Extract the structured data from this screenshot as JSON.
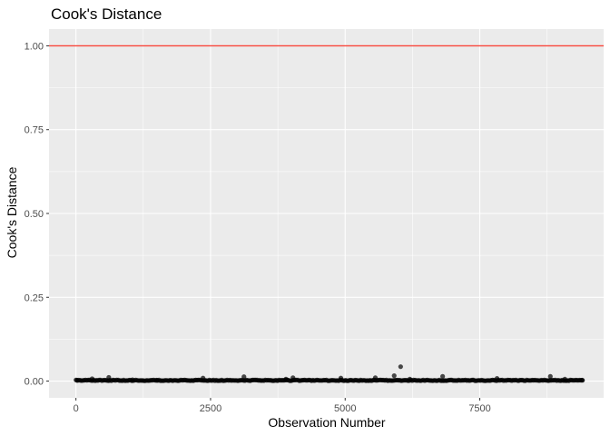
{
  "chart_data": {
    "type": "scatter",
    "title": "Cook's Distance",
    "xlabel": "Observation Number",
    "ylabel": "Cook's Distance",
    "xlim": [
      -500,
      9800
    ],
    "ylim": [
      -0.05,
      1.05
    ],
    "x_ticks": [
      0,
      2500,
      5000,
      7500
    ],
    "x_tick_labels": [
      "0",
      "2500",
      "5000",
      "7500"
    ],
    "y_ticks": [
      0,
      0.25,
      0.5,
      0.75,
      1.0
    ],
    "y_tick_labels": [
      "0.00",
      "0.25",
      "0.50",
      "0.75",
      "1.00"
    ],
    "grid": true,
    "threshold_line": {
      "y": 1.0,
      "color": "#f8453a"
    },
    "observation_range": [
      1,
      9430
    ],
    "baseline_value": 0.001,
    "notable_points": [
      {
        "x": 20,
        "y": 0.003
      },
      {
        "x": 300,
        "y": 0.007
      },
      {
        "x": 610,
        "y": 0.011
      },
      {
        "x": 1050,
        "y": 0.004
      },
      {
        "x": 1500,
        "y": 0.003
      },
      {
        "x": 2360,
        "y": 0.009
      },
      {
        "x": 3120,
        "y": 0.013
      },
      {
        "x": 3900,
        "y": 0.006
      },
      {
        "x": 4030,
        "y": 0.01
      },
      {
        "x": 4920,
        "y": 0.009
      },
      {
        "x": 5560,
        "y": 0.01
      },
      {
        "x": 5910,
        "y": 0.016
      },
      {
        "x": 6030,
        "y": 0.043
      },
      {
        "x": 6200,
        "y": 0.006
      },
      {
        "x": 6810,
        "y": 0.014
      },
      {
        "x": 7820,
        "y": 0.008
      },
      {
        "x": 8810,
        "y": 0.014
      },
      {
        "x": 9080,
        "y": 0.006
      },
      {
        "x": 9400,
        "y": 0.003
      }
    ],
    "point_color": "#000000",
    "panel_background": "#ebebeb",
    "grid_color": "#ffffff"
  }
}
